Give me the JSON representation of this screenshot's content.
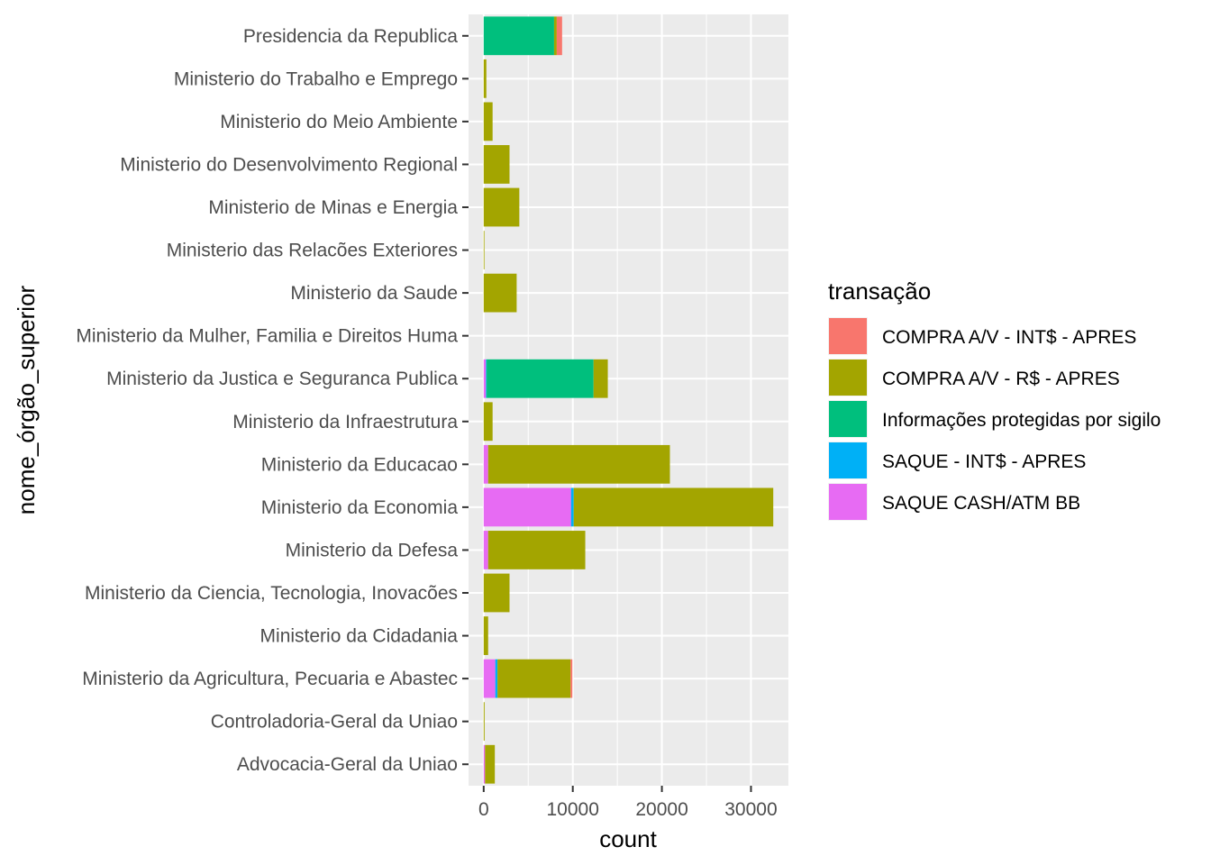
{
  "chart_data": {
    "type": "bar",
    "orientation": "horizontal",
    "stacked": true,
    "xlabel": "count",
    "ylabel": "nome_órgão_superior",
    "xlim": [
      -1700,
      34200
    ],
    "x_ticks": [
      0,
      10000,
      20000,
      30000
    ],
    "x_tick_labels": [
      "0",
      "10000",
      "20000",
      "30000"
    ],
    "grid": true,
    "legend_title": "transação",
    "legend_position": "right",
    "categories": [
      "Presidencia da Republica",
      "Ministerio do Trabalho e Emprego",
      "Ministerio do Meio Ambiente",
      "Ministerio do Desenvolvimento Regional",
      "Ministerio de Minas e Energia",
      "Ministerio das Relacões Exteriores",
      "Ministerio da Saude",
      "Ministerio da Mulher, Familia e Direitos Huma",
      "Ministerio da Justica e Seguranca Publica",
      "Ministerio da Infraestrutura",
      "Ministerio da Educacao",
      "Ministerio da Economia",
      "Ministerio da Defesa",
      "Ministerio da Ciencia, Tecnologia, Inovacões ",
      "Ministerio da Cidadania",
      "Ministerio da Agricultura, Pecuaria e Abastec",
      "Controladoria-Geral da Uniao",
      "Advocacia-Geral da Uniao"
    ],
    "series": [
      {
        "name": "SAQUE CASH/ATM BB",
        "color": "#E76BF3",
        "values": [
          0,
          0,
          0,
          0,
          0,
          0,
          0,
          0,
          250,
          0,
          500,
          9800,
          500,
          0,
          0,
          1300,
          0,
          150
        ]
      },
      {
        "name": "SAQUE - INT$ - APRES",
        "color": "#00B0F6",
        "values": [
          0,
          0,
          0,
          0,
          0,
          0,
          0,
          0,
          80,
          0,
          0,
          300,
          0,
          0,
          0,
          250,
          0,
          0
        ]
      },
      {
        "name": "Informações protegidas por sigilo",
        "color": "#00BF7D",
        "values": [
          7900,
          0,
          0,
          0,
          0,
          0,
          0,
          0,
          12000,
          0,
          0,
          0,
          0,
          0,
          0,
          0,
          0,
          0
        ]
      },
      {
        "name": "COMPRA A/V - R$ - APRES",
        "color": "#A3A500",
        "values": [
          300,
          300,
          1000,
          2900,
          4000,
          50,
          3700,
          0,
          1600,
          1000,
          20400,
          22400,
          10900,
          2900,
          500,
          8200,
          100,
          1100
        ]
      },
      {
        "name": "COMPRA A/V - INT$ - APRES",
        "color": "#F8766D",
        "values": [
          600,
          0,
          0,
          0,
          0,
          0,
          0,
          0,
          0,
          0,
          0,
          0,
          0,
          0,
          0,
          200,
          0,
          0
        ]
      }
    ],
    "legend_order": [
      "COMPRA A/V - INT$ - APRES",
      "COMPRA A/V - R$ - APRES",
      "Informações protegidas por sigilo",
      "SAQUE - INT$ - APRES",
      "SAQUE CASH/ATM BB"
    ],
    "panel_background": "#EBEBEB",
    "grid_color": "#FFFFFF"
  }
}
